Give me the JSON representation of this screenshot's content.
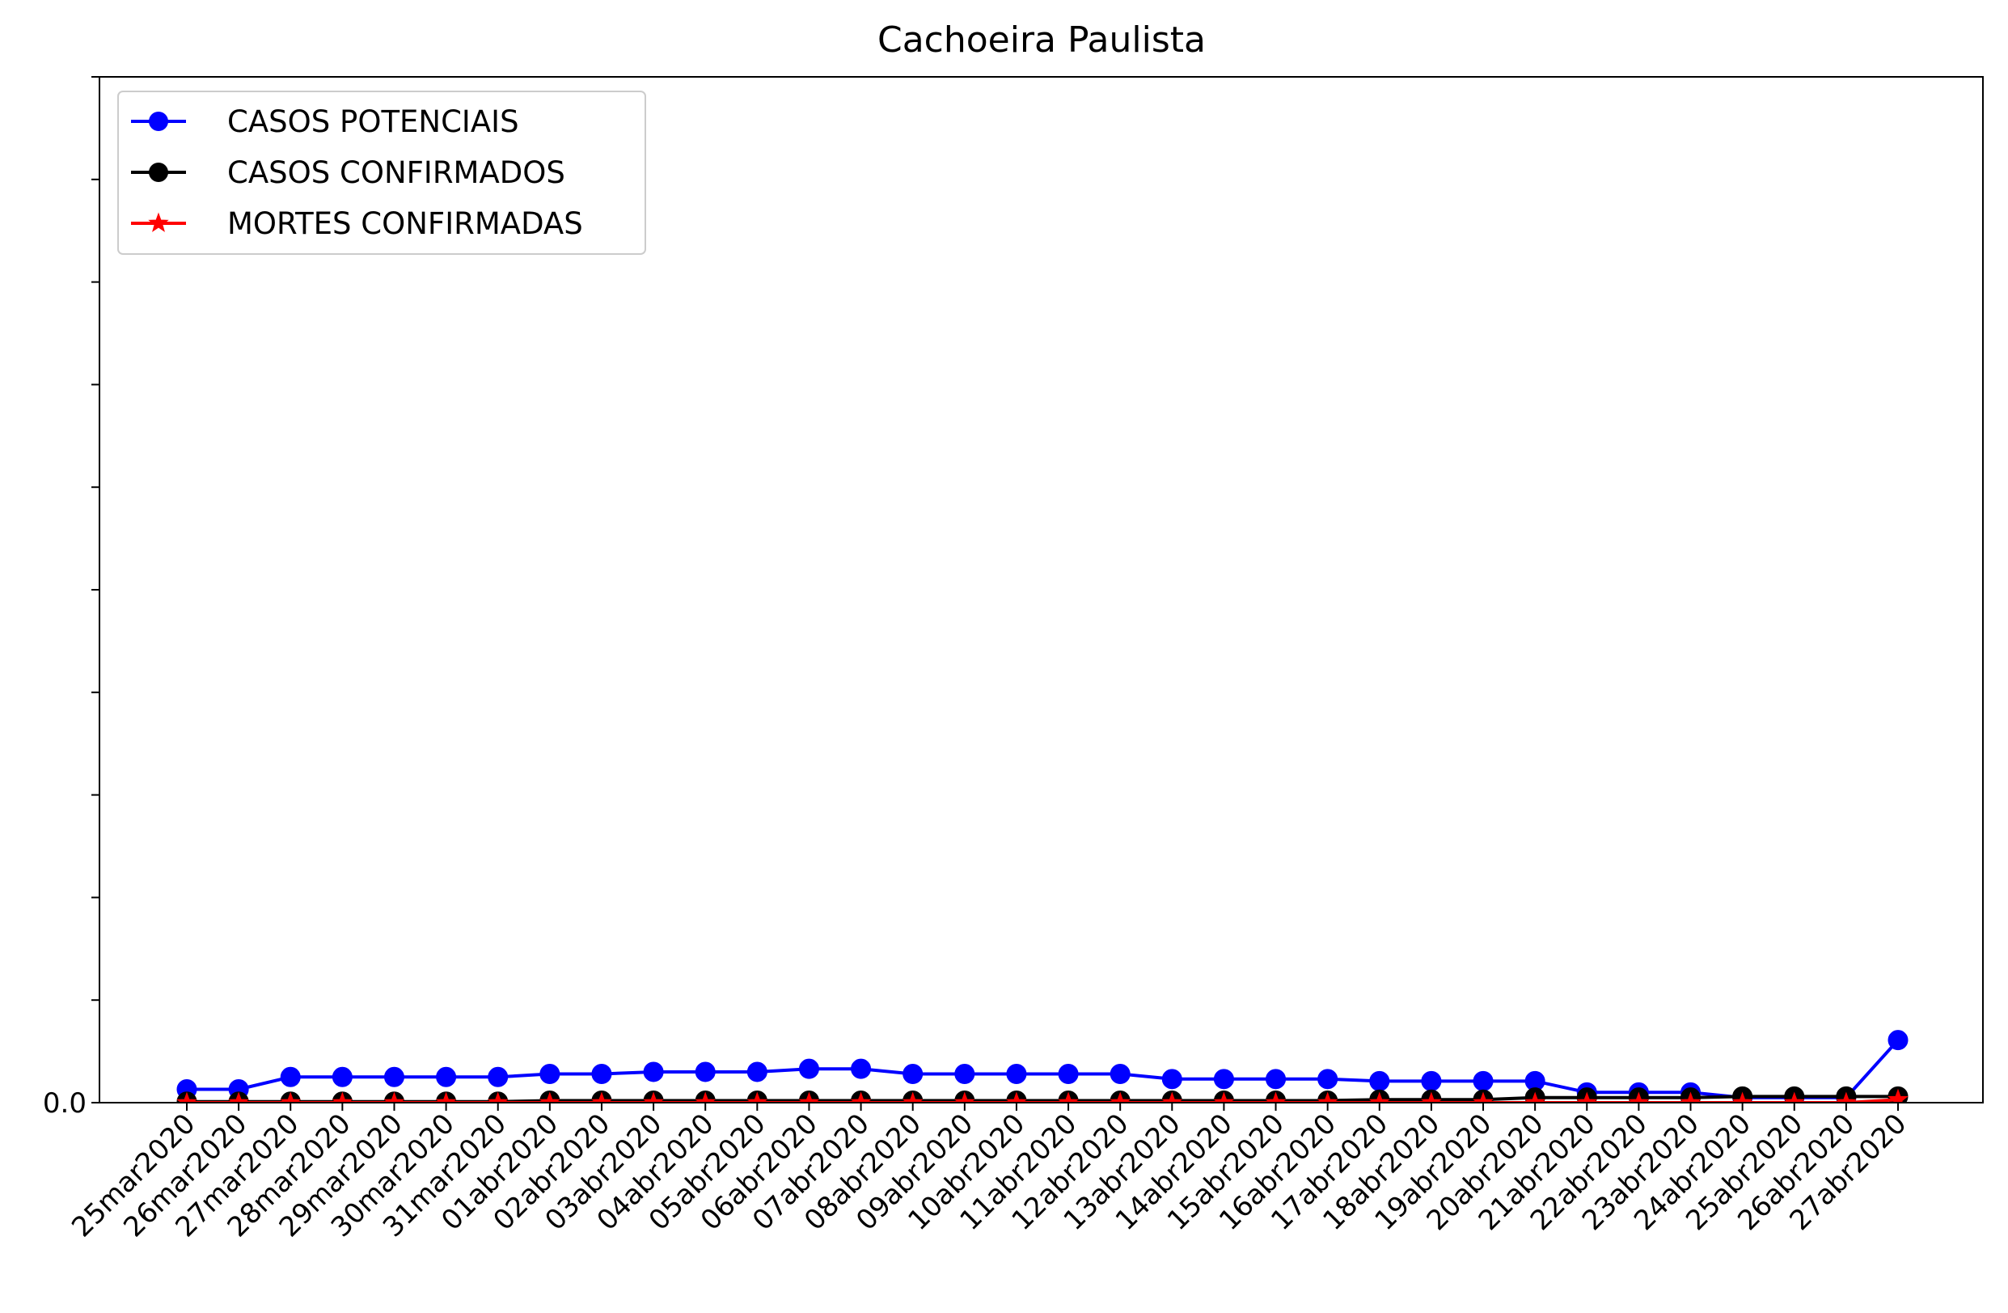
{
  "chart_data": {
    "type": "line",
    "title": "Cachoeira Paulista",
    "xlabel": "",
    "ylabel": "",
    "x": [
      "25mar2020",
      "26mar2020",
      "27mar2020",
      "28mar2020",
      "29mar2020",
      "30mar2020",
      "31mar2020",
      "01abr2020",
      "02abr2020",
      "03abr2020",
      "04abr2020",
      "05abr2020",
      "06abr2020",
      "07abr2020",
      "08abr2020",
      "09abr2020",
      "10abr2020",
      "11abr2020",
      "12abr2020",
      "13abr2020",
      "14abr2020",
      "15abr2020",
      "16abr2020",
      "17abr2020",
      "18abr2020",
      "19abr2020",
      "20abr2020",
      "21abr2020",
      "22abr2020",
      "23abr2020",
      "24abr2020",
      "25abr2020",
      "26abr2020",
      "27abr2020"
    ],
    "ylim": [
      0,
      100
    ],
    "y_ticks": [
      0,
      10,
      20,
      30,
      40,
      50,
      60,
      70,
      80,
      90,
      100
    ],
    "y_tick_labels": [
      "0.0",
      "",
      "",
      "",
      "",
      "",
      "",
      "",
      "",
      "",
      ""
    ],
    "grid": false,
    "legend_position": "top-left",
    "series": [
      {
        "name": "CASOS POTENCIAIS",
        "color": "#0000ff",
        "marker": "circle",
        "values": [
          1.3,
          1.3,
          2.5,
          2.5,
          2.5,
          2.5,
          2.5,
          2.8,
          2.8,
          3.0,
          3.0,
          3.0,
          3.3,
          3.3,
          2.8,
          2.8,
          2.8,
          2.8,
          2.8,
          2.3,
          2.3,
          2.3,
          2.3,
          2.1,
          2.1,
          2.1,
          2.1,
          1.0,
          1.0,
          1.0,
          0.5,
          0.5,
          0.5,
          6.1
        ]
      },
      {
        "name": "CASOS CONFIRMADOS",
        "color": "#000000",
        "marker": "circle",
        "values": [
          0.1,
          0.1,
          0.1,
          0.1,
          0.1,
          0.1,
          0.1,
          0.2,
          0.2,
          0.2,
          0.2,
          0.2,
          0.2,
          0.2,
          0.2,
          0.2,
          0.2,
          0.2,
          0.2,
          0.2,
          0.2,
          0.2,
          0.2,
          0.3,
          0.3,
          0.3,
          0.5,
          0.5,
          0.5,
          0.5,
          0.6,
          0.6,
          0.6,
          0.6
        ]
      },
      {
        "name": "MORTES CONFIRMADAS",
        "color": "#ff0000",
        "marker": "star",
        "values": [
          0,
          0,
          0,
          0,
          0,
          0,
          0,
          0,
          0,
          0,
          0,
          0,
          0,
          0,
          0,
          0,
          0,
          0,
          0,
          0,
          0,
          0,
          0,
          0,
          0,
          0,
          0,
          0,
          0,
          0,
          0,
          0,
          0,
          0.3
        ]
      }
    ]
  }
}
